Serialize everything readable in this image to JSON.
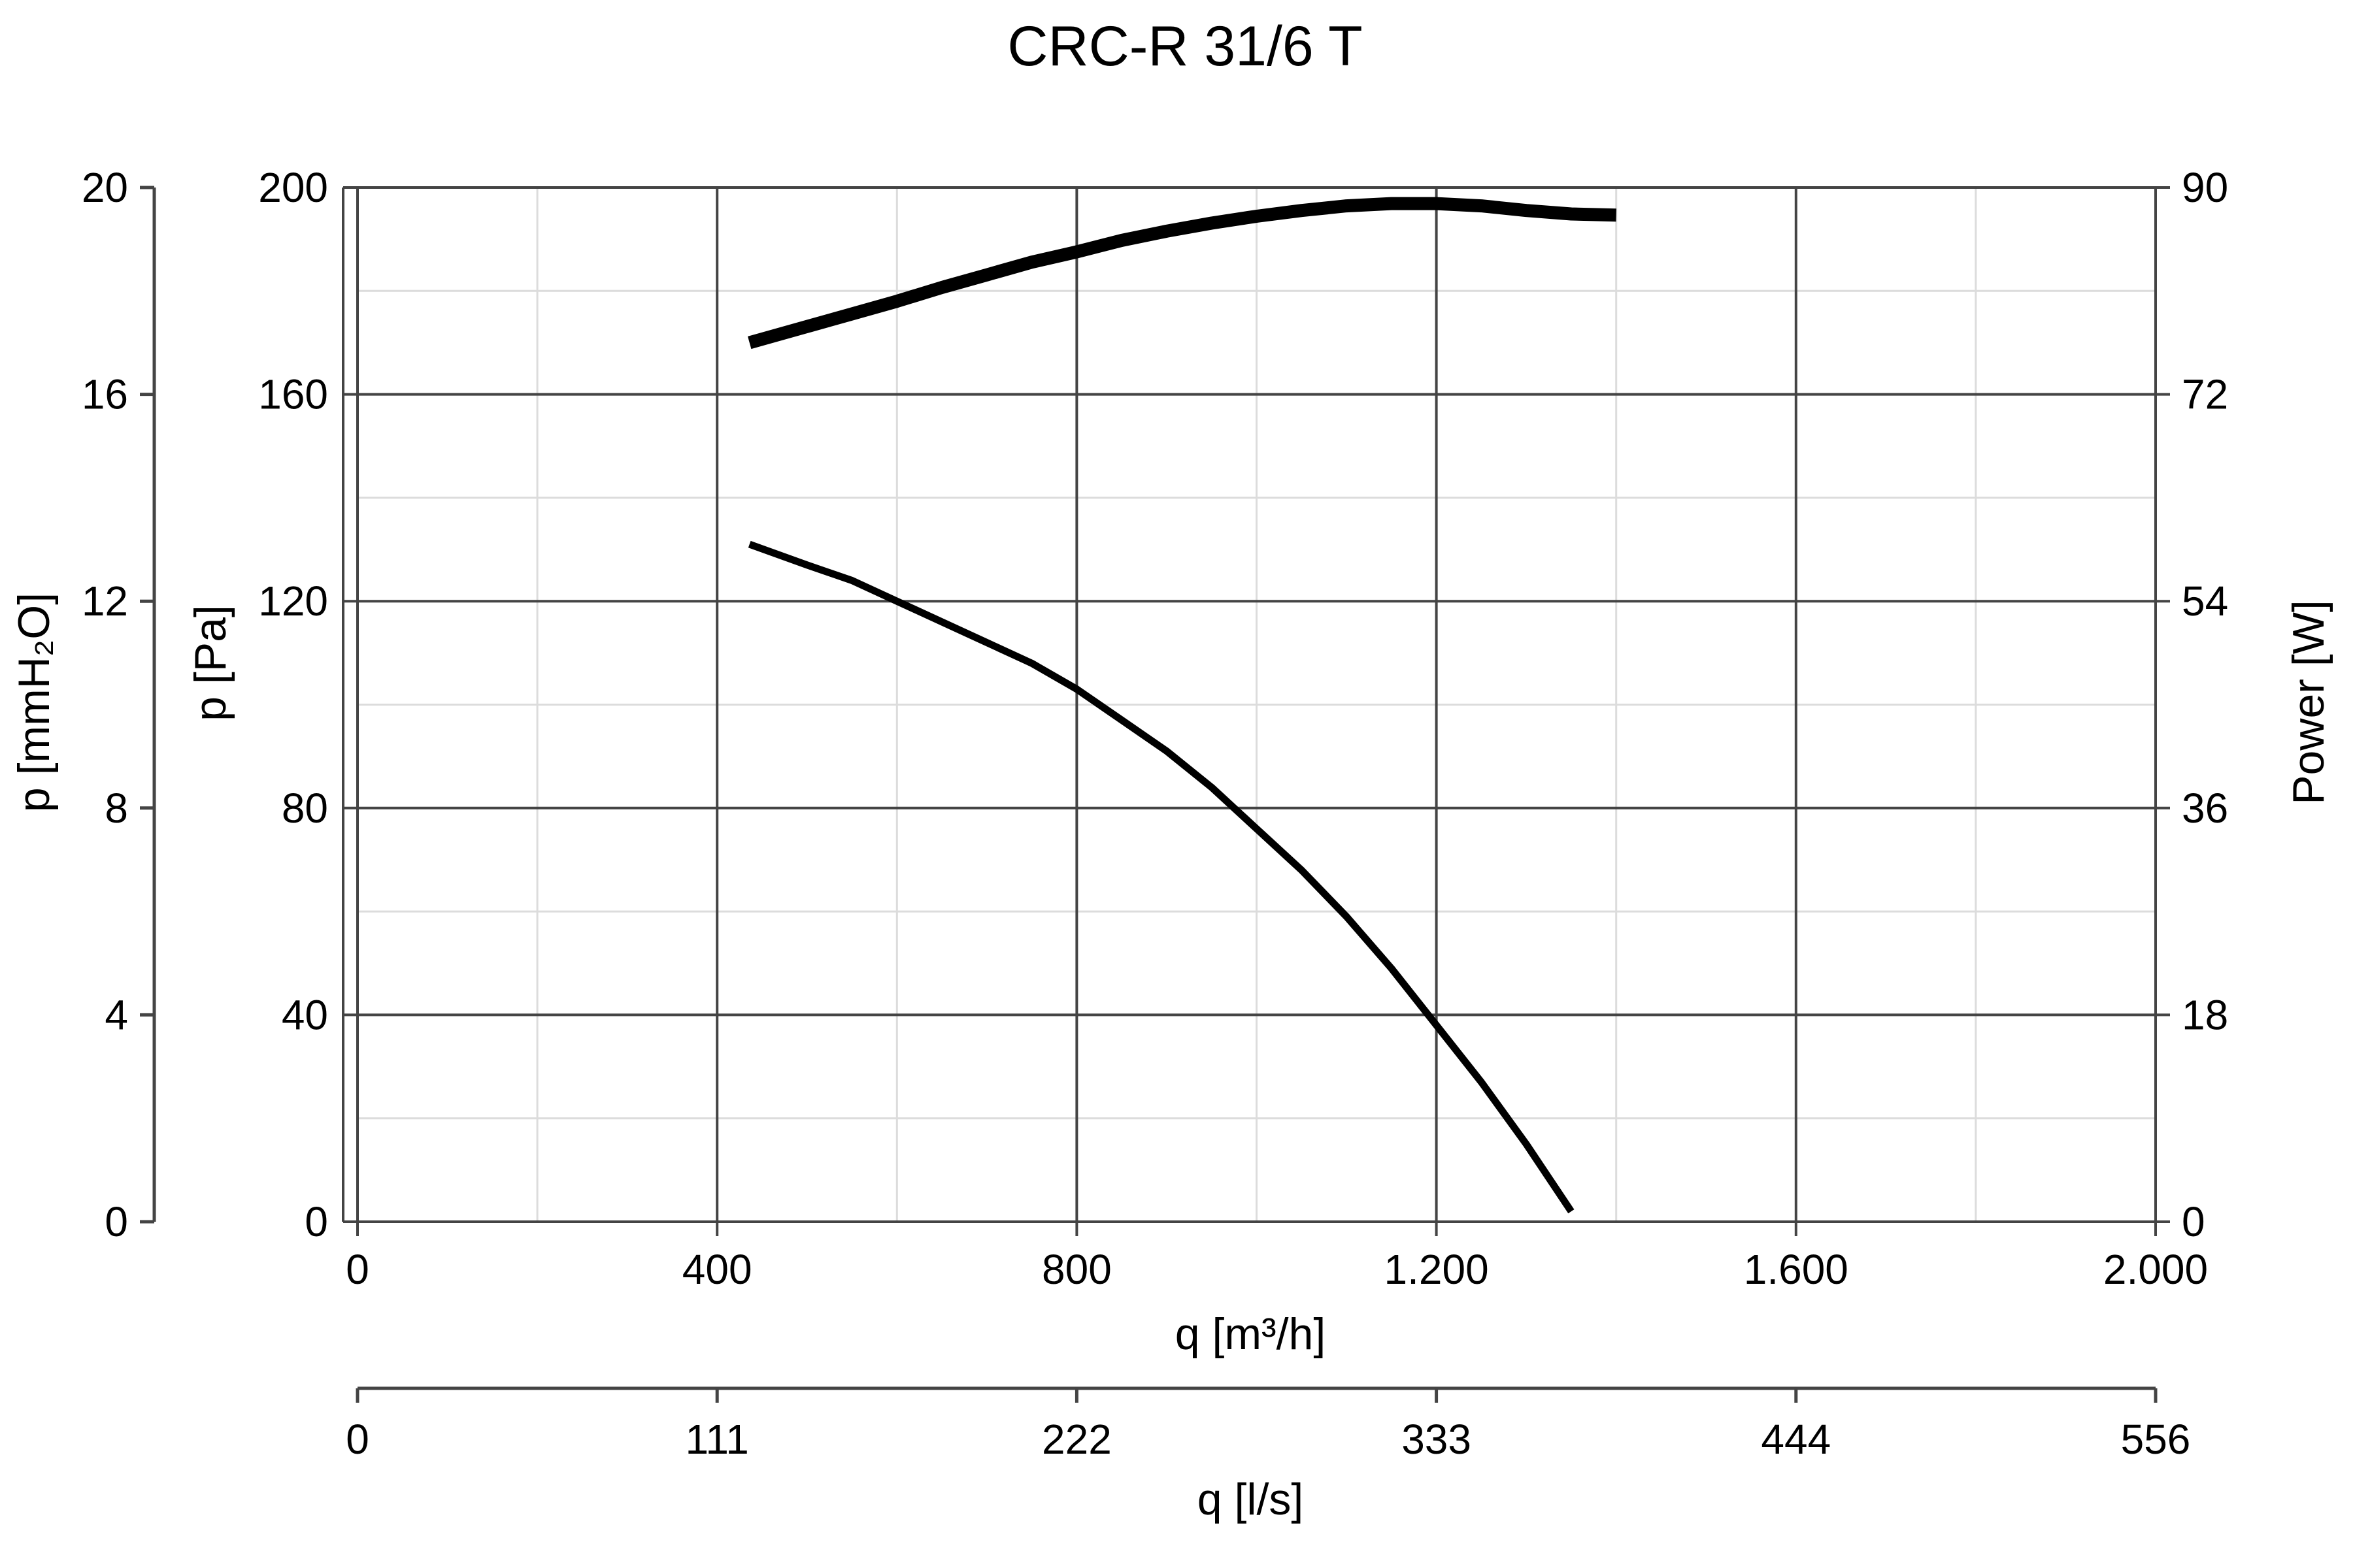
{
  "chart_data": {
    "type": "line",
    "title": "CRC-R 31/6 T",
    "x_axis": {
      "label": "q [m³/h]",
      "range": [
        0,
        2000
      ],
      "ticks": [
        0,
        400,
        800,
        1200,
        1600,
        2000
      ],
      "tick_labels": [
        "0",
        "400",
        "800",
        "1.200",
        "1.600",
        "2.000"
      ]
    },
    "x2_axis": {
      "label": "q [l/s]",
      "ticks": [
        0,
        111,
        222,
        333,
        444,
        556
      ],
      "tick_labels": [
        "0",
        "111",
        "222",
        "333",
        "444",
        "556"
      ]
    },
    "y_axis": {
      "label": "p [Pa]",
      "range": [
        0,
        200
      ],
      "ticks": [
        0,
        40,
        80,
        120,
        160,
        200
      ],
      "tick_labels": [
        "0",
        "40",
        "80",
        "120",
        "160",
        "200"
      ]
    },
    "y_outer_axis": {
      "label": "p [mmH₂O]",
      "ticks": [
        0,
        4,
        8,
        12,
        16,
        20
      ],
      "tick_labels": [
        "0",
        "4",
        "8",
        "12",
        "16",
        "20"
      ]
    },
    "y_right_axis": {
      "label": "Power [W]",
      "range": [
        0,
        90
      ],
      "ticks": [
        0,
        18,
        36,
        54,
        72,
        90
      ],
      "tick_labels": [
        "0",
        "18",
        "36",
        "54",
        "72",
        "90"
      ]
    },
    "grid": true,
    "series": [
      {
        "axis": "p [Pa]",
        "color": "#000000",
        "points": [
          [
            436,
            131
          ],
          [
            500,
            127
          ],
          [
            550,
            124
          ],
          [
            600,
            120
          ],
          [
            650,
            116
          ],
          [
            700,
            112
          ],
          [
            750,
            108
          ],
          [
            800,
            103
          ],
          [
            850,
            97
          ],
          [
            900,
            91
          ],
          [
            950,
            84
          ],
          [
            1000,
            76
          ],
          [
            1050,
            68
          ],
          [
            1100,
            59
          ],
          [
            1150,
            49
          ],
          [
            1200,
            38
          ],
          [
            1250,
            27
          ],
          [
            1300,
            15
          ],
          [
            1350,
            2
          ]
        ]
      },
      {
        "axis": "Power [W]",
        "color": "#000000",
        "points": [
          [
            436,
            76.5
          ],
          [
            500,
            77.9
          ],
          [
            550,
            79.0
          ],
          [
            600,
            80.1
          ],
          [
            650,
            81.3
          ],
          [
            700,
            82.4
          ],
          [
            750,
            83.5
          ],
          [
            800,
            84.4
          ],
          [
            850,
            85.4
          ],
          [
            900,
            86.2
          ],
          [
            950,
            86.9
          ],
          [
            1000,
            87.5
          ],
          [
            1050,
            88.0
          ],
          [
            1100,
            88.4
          ],
          [
            1150,
            88.6
          ],
          [
            1200,
            88.6
          ],
          [
            1250,
            88.4
          ],
          [
            1300,
            88.0
          ],
          [
            1350,
            87.7
          ],
          [
            1400,
            87.6
          ]
        ]
      }
    ]
  }
}
